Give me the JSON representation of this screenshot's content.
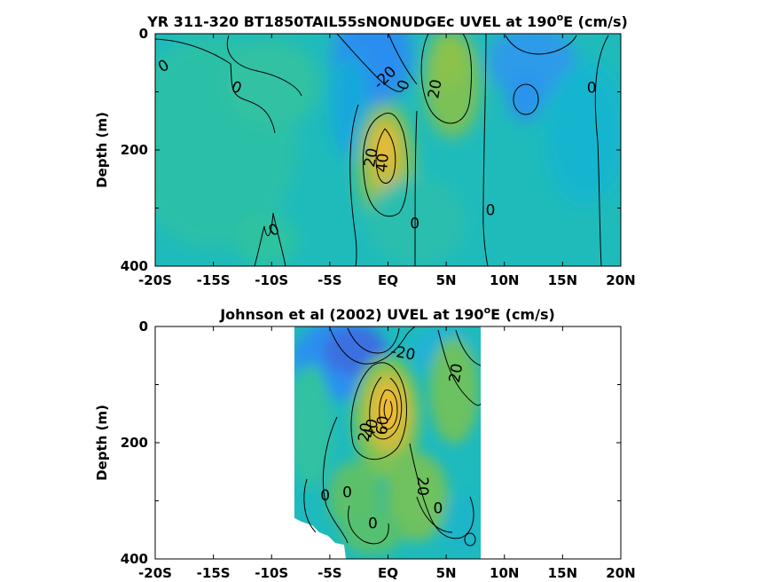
{
  "chart_data": [
    {
      "type": "heatmap",
      "title": "YR 311-320 BT1850TAIL55sNONUDGEc UVEL at 190",
      "title_sup": "o",
      "title_end": "E (cm/s)",
      "ylabel": "Depth (m)",
      "x_ticks": [
        "-20S",
        "-15S",
        "-10S",
        "-5S",
        "EQ",
        "5N",
        "10N",
        "15N",
        "20N"
      ],
      "y_ticks": [
        "0",
        "200",
        "400"
      ],
      "xlim": [
        -20,
        20
      ],
      "ylim": [
        400,
        0
      ],
      "data_coverage": [
        -20,
        20
      ],
      "features": [
        {
          "name": "south equatorial current core",
          "lat": -0.5,
          "depth": 30,
          "value": -35
        },
        {
          "name": "equatorial undercurrent core",
          "lat": 0,
          "depth": 200,
          "value": 45
        },
        {
          "name": "north equatorial countercurrent",
          "lat": 5,
          "depth": 90,
          "value": 25
        },
        {
          "name": "north equatorial current",
          "lat": 12,
          "depth": 30,
          "value": -25
        },
        {
          "name": "eddy",
          "lat": 12,
          "depth": 110,
          "value": -20
        },
        {
          "name": "south",
          "lat": -14,
          "depth": 100,
          "value": 5
        }
      ],
      "contour_labels": [
        {
          "text": "0",
          "lat": -19.3,
          "depth": 55,
          "rot": -30
        },
        {
          "text": "0",
          "lat": -13,
          "depth": 92,
          "rot": 20
        },
        {
          "text": "-20",
          "lat": -0.3,
          "depth": 75,
          "rot": -45
        },
        {
          "text": "0",
          "lat": 1.3,
          "depth": 88,
          "rot": -70
        },
        {
          "text": "20",
          "lat": 4,
          "depth": 95,
          "rot": -80
        },
        {
          "text": "0",
          "lat": 17.5,
          "depth": 92,
          "rot": 0
        },
        {
          "text": "20",
          "lat": -1.5,
          "depth": 213,
          "rot": -80
        },
        {
          "text": "40",
          "lat": -0.5,
          "depth": 222,
          "rot": -85
        },
        {
          "text": "0",
          "lat": 8.8,
          "depth": 303,
          "rot": 0
        },
        {
          "text": "0",
          "lat": 2.3,
          "depth": 326,
          "rot": 0
        },
        {
          "text": "0",
          "lat": -9.8,
          "depth": 337,
          "rot": -30
        }
      ]
    },
    {
      "type": "heatmap",
      "title": "Johnson et al (2002) UVEL at 190",
      "title_sup": "o",
      "title_end": "E (cm/s)",
      "ylabel": "Depth (m)",
      "x_ticks": [
        "-20S",
        "-15S",
        "-10S",
        "-5S",
        "EQ",
        "5N",
        "10N",
        "15N",
        "20N"
      ],
      "y_ticks": [
        "0",
        "200",
        "400"
      ],
      "xlim": [
        -20,
        20
      ],
      "ylim": [
        400,
        0
      ],
      "data_coverage": [
        -8,
        8
      ],
      "features": [
        {
          "name": "south equatorial current core",
          "lat": -1.5,
          "depth": 20,
          "value": -35
        },
        {
          "name": "equatorial undercurrent core",
          "lat": 0,
          "depth": 150,
          "value": 55
        },
        {
          "name": "north equatorial countercurrent",
          "lat": 5,
          "depth": 90,
          "value": 20
        },
        {
          "name": "deep eastward jet",
          "lat": 3,
          "depth": 290,
          "value": 20
        }
      ],
      "contour_labels": [
        {
          "text": "-20",
          "lat": 1.3,
          "depth": 45,
          "rot": 10
        },
        {
          "text": "20",
          "lat": 5.8,
          "depth": 80,
          "rot": -80
        },
        {
          "text": "40",
          "lat": -1.5,
          "depth": 175,
          "rot": -75
        },
        {
          "text": "20",
          "lat": -2.0,
          "depth": 182,
          "rot": -80
        },
        {
          "text": "60",
          "lat": -0.5,
          "depth": 170,
          "rot": -85
        },
        {
          "text": "20",
          "lat": 3.0,
          "depth": 275,
          "rot": 90
        },
        {
          "text": "0",
          "lat": -5.4,
          "depth": 290,
          "rot": 0
        },
        {
          "text": "0",
          "lat": -3.5,
          "depth": 285,
          "rot": 0
        },
        {
          "text": "0",
          "lat": 4.3,
          "depth": 312,
          "rot": 0
        },
        {
          "text": "0",
          "lat": -1.3,
          "depth": 338,
          "rot": 0
        }
      ]
    }
  ],
  "colormap": [
    "#3e26a8",
    "#2e87f7",
    "#10b3d5",
    "#2ec09e",
    "#9abe45",
    "#f2b835",
    "#f9fb15"
  ],
  "color_range": [
    -60,
    60
  ]
}
